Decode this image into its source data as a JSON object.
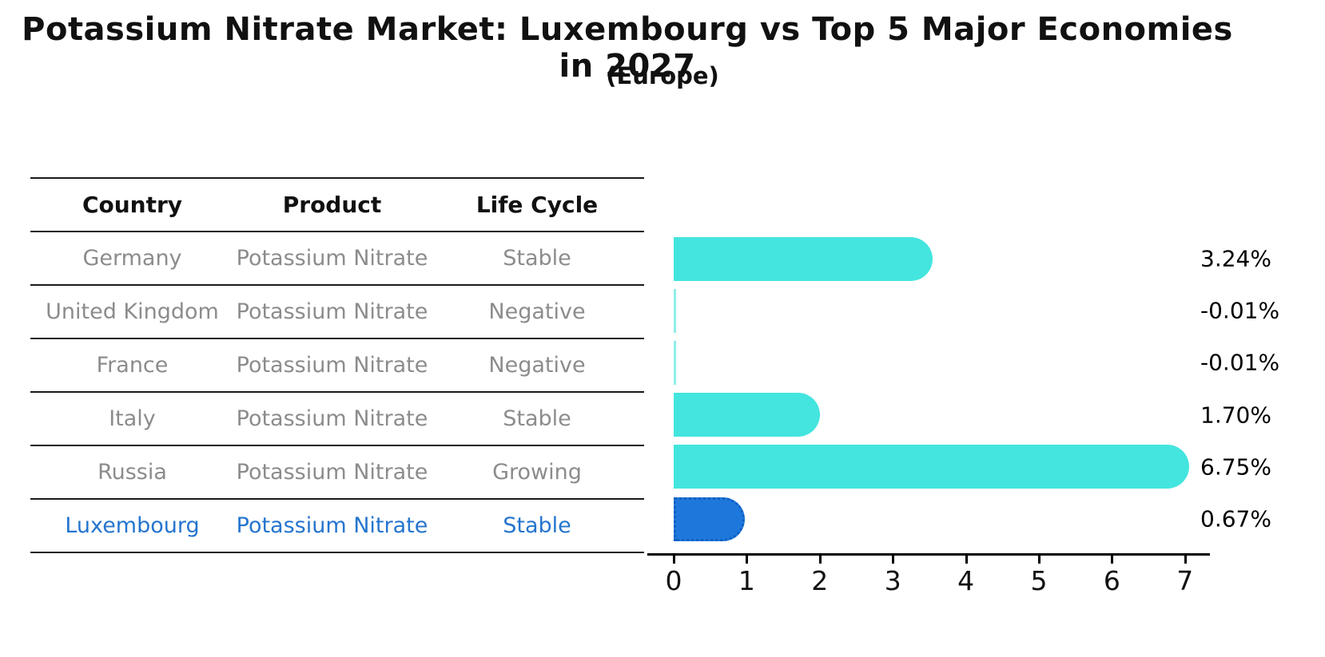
{
  "title": "Potassium Nitrate Market: Luxembourg vs Top 5 Major Economies in 2027",
  "subtitle": "(Europe)",
  "table": {
    "headers": [
      "Country",
      "Product",
      "Life Cycle"
    ],
    "rows": [
      {
        "country": "Germany",
        "product": "Potassium Nitrate",
        "life_cycle": "Stable",
        "highlight": false
      },
      {
        "country": "United Kingdom",
        "product": "Potassium Nitrate",
        "life_cycle": "Negative",
        "highlight": false
      },
      {
        "country": "France",
        "product": "Potassium Nitrate",
        "life_cycle": "Negative",
        "highlight": false
      },
      {
        "country": "Italy",
        "product": "Potassium Nitrate",
        "life_cycle": "Stable",
        "highlight": false
      },
      {
        "country": "Russia",
        "product": "Potassium Nitrate",
        "life_cycle": "Growing",
        "highlight": false
      },
      {
        "country": "Luxembourg",
        "product": "Potassium Nitrate",
        "life_cycle": "Stable",
        "highlight": true
      }
    ]
  },
  "chart_data": {
    "type": "bar",
    "orientation": "horizontal",
    "categories": [
      "Germany",
      "United Kingdom",
      "France",
      "Italy",
      "Russia",
      "Luxembourg"
    ],
    "values": [
      3.24,
      -0.01,
      -0.01,
      1.7,
      6.75,
      0.67
    ],
    "value_labels": [
      "3.24%",
      "-0.01%",
      "-0.01%",
      "1.70%",
      "6.75%",
      "0.67%"
    ],
    "title": "Potassium Nitrate Market: Luxembourg vs Top 5 Major Economies in 2027 (Europe)",
    "xlabel": "",
    "ylabel": "",
    "xlim": [
      0,
      7
    ],
    "x_ticks": [
      "0",
      "1",
      "2",
      "3",
      "4",
      "5",
      "6",
      "7"
    ],
    "grid": false,
    "legend": false,
    "bar_color": "#43e5de",
    "highlight_color": "#1e78dc",
    "highlight_index": 5
  }
}
